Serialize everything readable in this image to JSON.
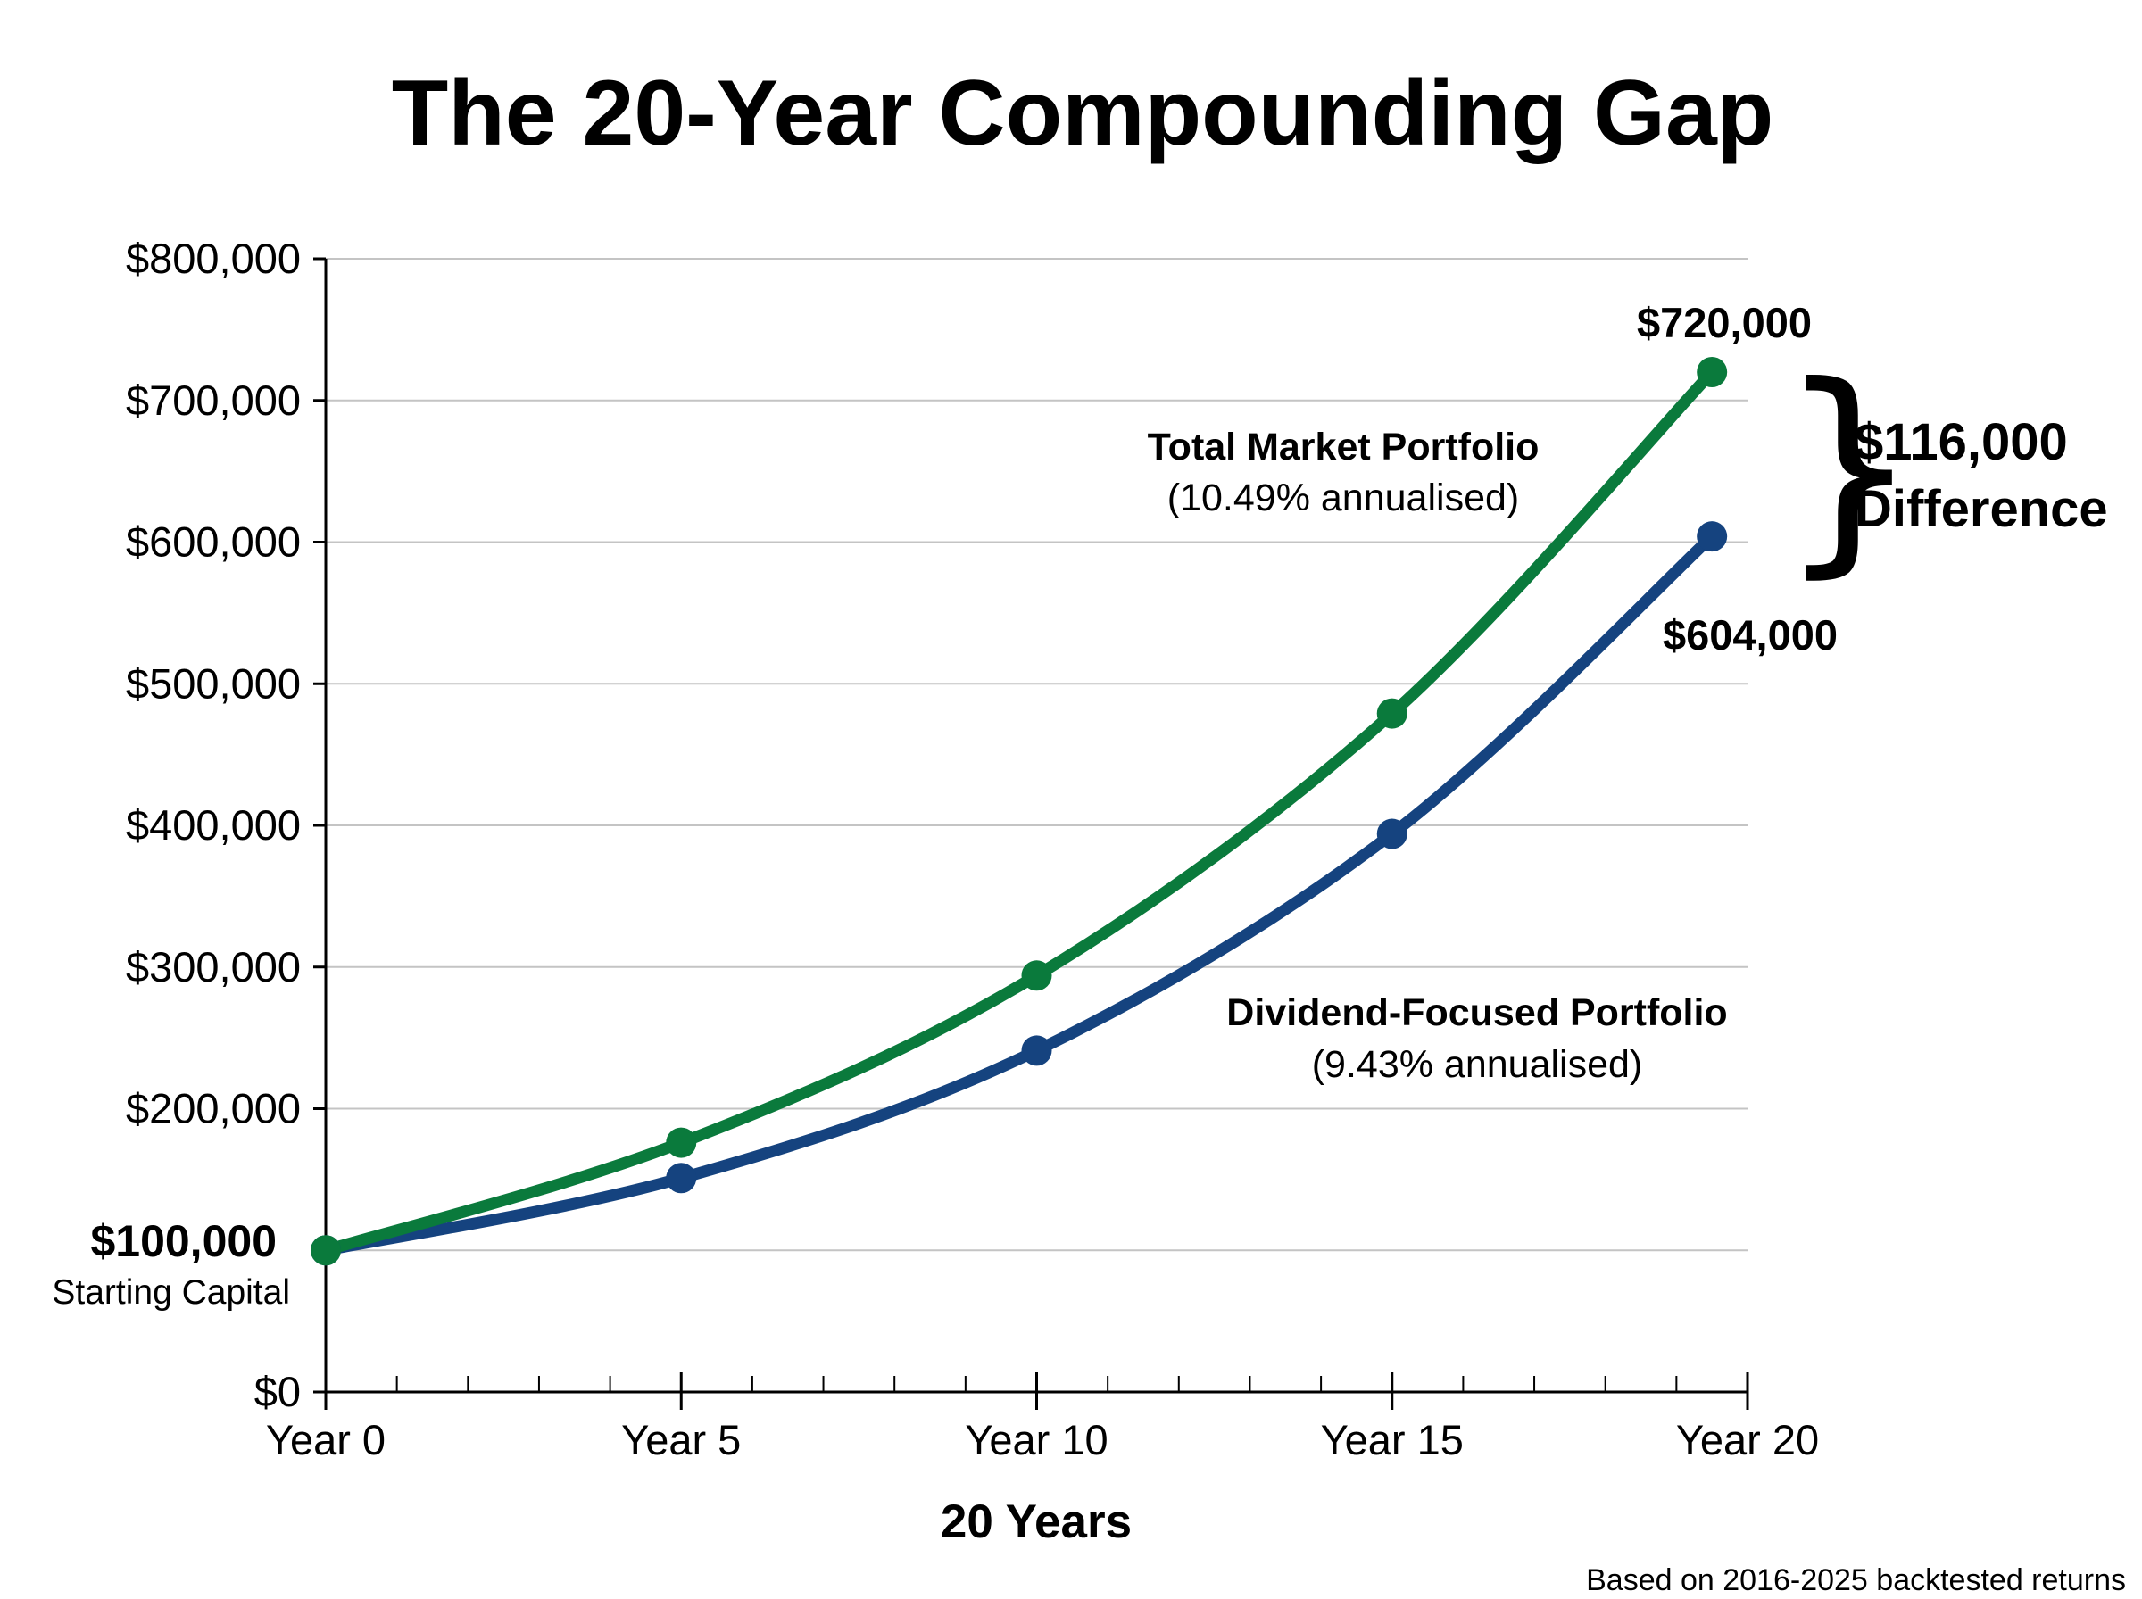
{
  "chart_data": {
    "type": "line",
    "title": "The 20-Year Compounding Gap",
    "xlabel": "20 Years",
    "ylabel": "",
    "x_tick_labels": [
      "Year 0",
      "Year 5",
      "Year 10",
      "Year 15",
      "Year 20"
    ],
    "x_ticks": [
      0,
      5,
      10,
      15,
      20
    ],
    "xlim": [
      0,
      20
    ],
    "y_tick_labels": [
      "$0",
      "$100,000",
      "$200,000",
      "$300,000",
      "$400,000",
      "$500,000",
      "$600,000",
      "$700,000",
      "$800,000"
    ],
    "y_ticks": [
      0,
      100000,
      200000,
      300000,
      400000,
      500000,
      600000,
      700000,
      800000
    ],
    "ylim": [
      0,
      800000
    ],
    "grid": true,
    "series": [
      {
        "name": "Total Market Portfolio",
        "rate": "(10.49% annualised)",
        "color": "#0a7a3c",
        "x": [
          0,
          5,
          10,
          15,
          19.5
        ],
        "y": [
          100000,
          176000,
          294000,
          479000,
          720000
        ],
        "end_label": "$720,000"
      },
      {
        "name": "Dividend-Focused Portfolio",
        "rate": "(9.43% annualised)",
        "color": "#15437f",
        "x": [
          0,
          5,
          10,
          15,
          19.5
        ],
        "y": [
          100000,
          151000,
          241000,
          394000,
          604000
        ],
        "end_label": "$604,000"
      }
    ],
    "annotations": {
      "start_value": "$100,000",
      "start_caption": "Starting Capital",
      "difference_value": "$116,000",
      "difference_caption": "Difference",
      "brace": "}"
    },
    "source_note": "Based on 2016-2025 backtested returns"
  }
}
